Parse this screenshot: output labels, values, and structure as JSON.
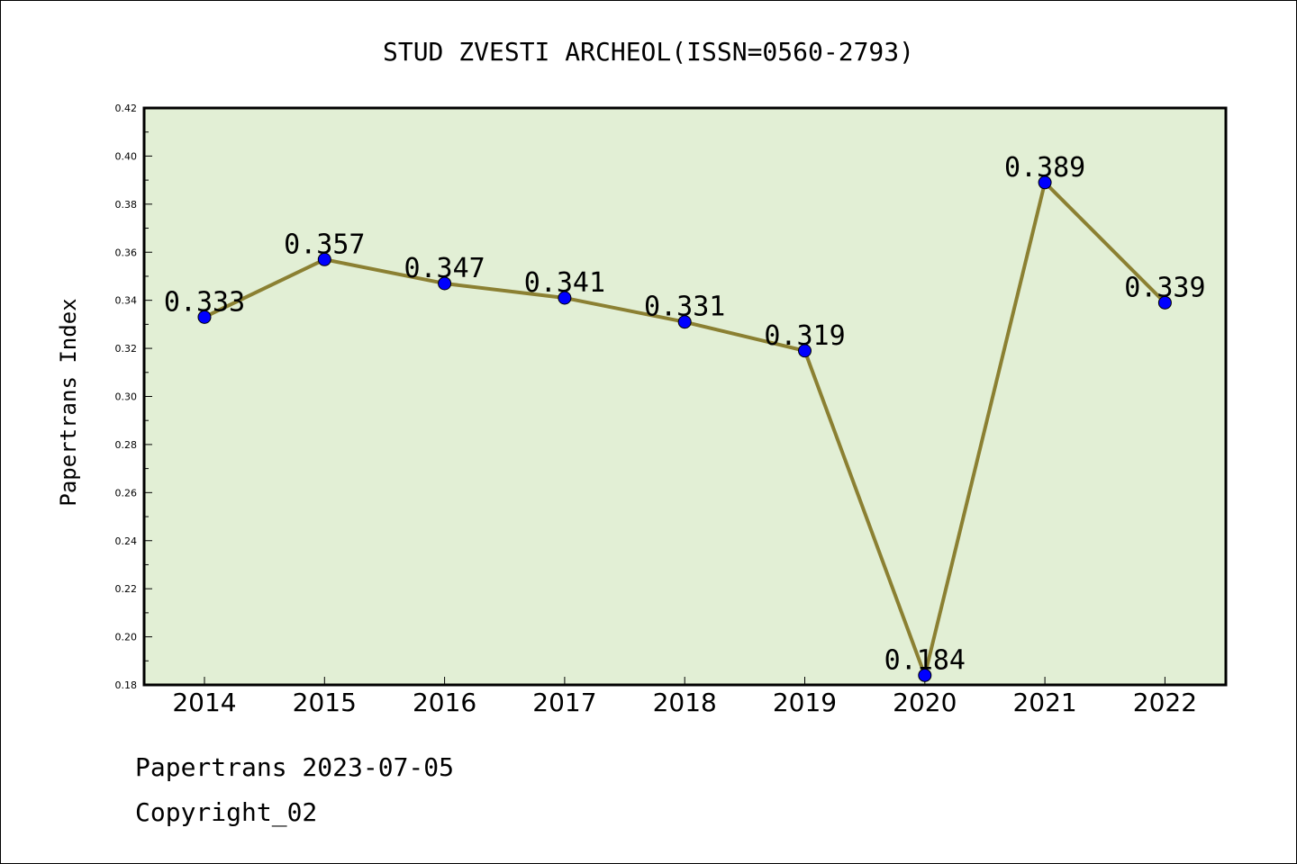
{
  "chart_data": {
    "type": "line",
    "title": "STUD ZVESTI ARCHEOL(ISSN=0560-2793)",
    "xlabel": "",
    "ylabel": "Papertrans Index",
    "ylim": [
      0.18,
      0.42
    ],
    "yticks": [
      "0.18",
      "0.20",
      "0.22",
      "0.24",
      "0.26",
      "0.28",
      "0.30",
      "0.32",
      "0.34",
      "0.36",
      "0.38",
      "0.40",
      "0.42"
    ],
    "categories": [
      "2014",
      "2015",
      "2016",
      "2017",
      "2018",
      "2019",
      "2020",
      "2021",
      "2022"
    ],
    "values": [
      0.333,
      0.357,
      0.347,
      0.341,
      0.331,
      0.319,
      0.184,
      0.389,
      0.339
    ],
    "data_labels": [
      "0.333",
      "0.357",
      "0.347",
      "0.341",
      "0.331",
      "0.319",
      "0.184",
      "0.389",
      "0.339"
    ],
    "grid": false,
    "plot_background": "#e2efd5",
    "line_color": "#8b8032",
    "marker_color": "#0000ff"
  },
  "footer": {
    "line1": "Papertrans 2023-07-05",
    "line2": "Copyright_02"
  }
}
